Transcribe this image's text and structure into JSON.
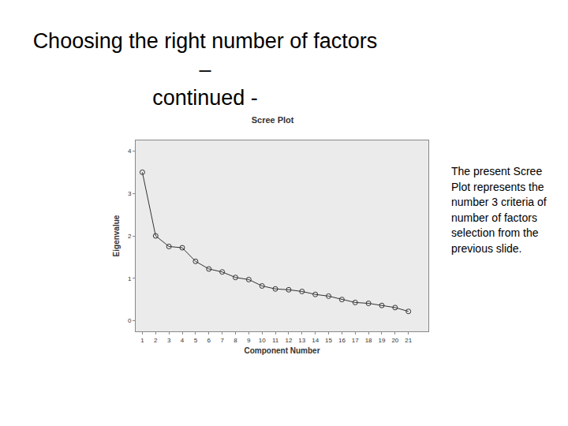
{
  "slide_title": [
    "Choosing the right number of factors –",
    "continued -"
  ],
  "side_text": "The present Scree Plot represents the number 3 criteria of number of factors selection from the previous slide.",
  "chart_data": {
    "type": "line",
    "title": "Scree Plot",
    "x_label": "Component Number",
    "y_label": "Eigenvalue",
    "x": [
      1,
      2,
      3,
      4,
      5,
      6,
      7,
      8,
      9,
      10,
      11,
      12,
      13,
      14,
      15,
      16,
      17,
      18,
      19,
      20,
      21
    ],
    "values": [
      3.5,
      2.0,
      1.75,
      1.72,
      1.4,
      1.22,
      1.15,
      1.02,
      0.97,
      0.82,
      0.75,
      0.73,
      0.69,
      0.62,
      0.58,
      0.5,
      0.43,
      0.41,
      0.36,
      0.31,
      0.22
    ],
    "xlim": [
      0.5,
      22.5
    ],
    "xticks": [
      1,
      2,
      3,
      4,
      5,
      6,
      7,
      8,
      9,
      10,
      11,
      12,
      13,
      14,
      15,
      16,
      17,
      18,
      19,
      20,
      21
    ],
    "ylim": [
      -0.25,
      4.25
    ],
    "yticks": [
      0,
      1,
      2,
      3,
      4
    ],
    "color": "#333333",
    "marker": "open circle",
    "line_style": "solid",
    "grid": false
  }
}
